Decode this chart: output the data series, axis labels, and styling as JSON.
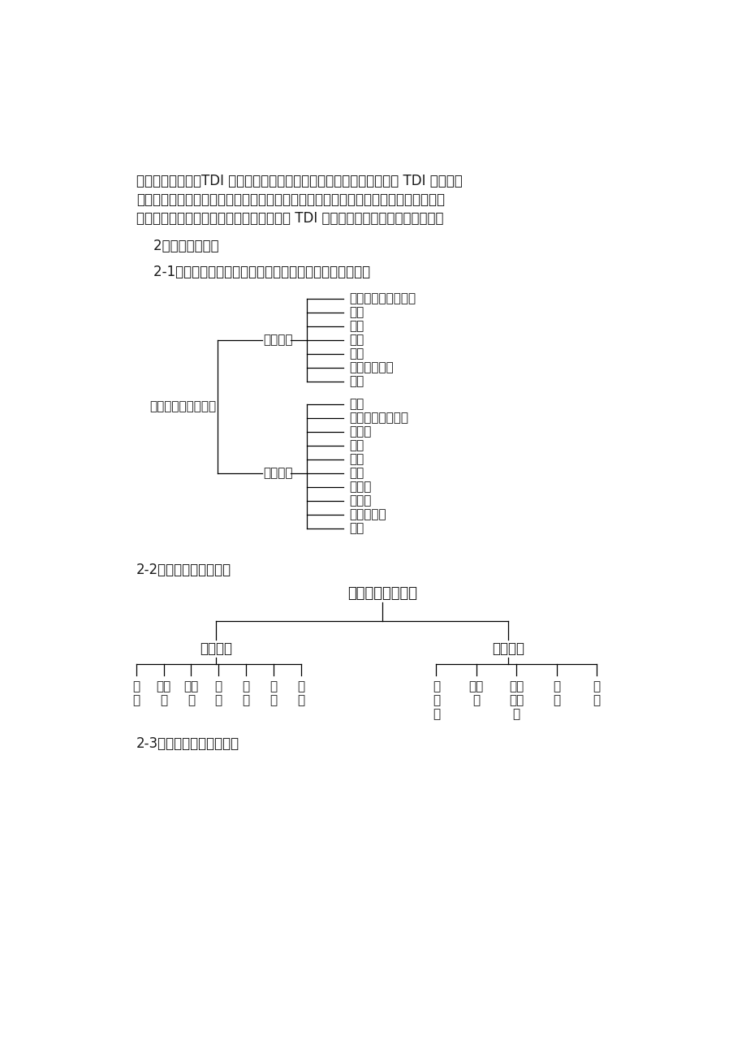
{
  "bg_color": "#ffffff",
  "text_color": "#1a1a1a",
  "paragraph_text": [
    "用提了限定标准，TDI 也在限定之列。过去我们的聚酯类的木器涂料中 TDI 的含量未",
    "加限制。近年来，不少厂家已明确的认识到，广大群众环保、健康意识的增强，迫使他",
    "们不得不改进技术，从而生产出群众热爱的 TDI 含量合科要求的木器涂料新品种。"
  ],
  "section2_title": "    2、次要成膜物质",
  "section21_title": "    2-1、颜料按其生产方法来分类可分为天然颜料和合成颜料",
  "section22_title": "2-2、颜料按其组成分类",
  "section23_title": "2-3、颜料按化学结构分类",
  "tree1": {
    "root": "颜料按生产方法分类",
    "branch1": "天然颜料",
    "branch1_items": [
      "朱砂（辰砂、丹砂）",
      "红土",
      "雄黄",
      "铜绿",
      "藤黄",
      "靛青（靛兰）",
      "其它"
    ],
    "branch2": "合成颜料",
    "branch2_items": [
      "钛白",
      "锌钡白（立德粉）",
      "铅铬黄",
      "铁兰",
      "铁红",
      "红丹",
      "大红粉",
      "钛菁兰",
      "喹吖啶酮红",
      "其他"
    ]
  },
  "tree2": {
    "root": "颜料按其组成分类",
    "left_branch": "无机颜料",
    "left_items": [
      "钛\n白",
      "锌钡\n白",
      "铅铬\n黄",
      "铁\n兰",
      "铁\n红",
      "红\n丹",
      "其\n它"
    ],
    "right_branch": "有机颜料",
    "right_items": [
      "大\n红\n粉",
      "酞氰\n兰",
      "喹吖\n啶酮\n红",
      "靛\n兰",
      "其\n他"
    ]
  }
}
